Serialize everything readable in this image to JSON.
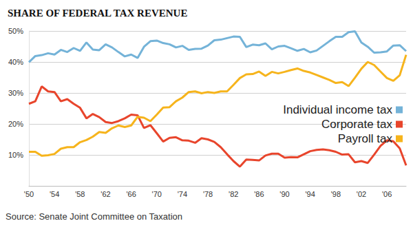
{
  "chart_data": {
    "type": "line",
    "title": "SHARE OF FEDERAL TAX REVENUE",
    "source": "Source: Senate Joint Committee on Taxation",
    "categories": [
      "'50",
      null,
      null,
      null,
      "'54",
      null,
      null,
      null,
      "'58",
      null,
      null,
      null,
      "'62",
      null,
      null,
      null,
      "'66",
      null,
      null,
      null,
      "'70",
      null,
      null,
      null,
      "'74",
      null,
      null,
      null,
      "'78",
      null,
      null,
      null,
      "'82",
      null,
      null,
      null,
      "'86",
      null,
      null,
      null,
      "'90",
      null,
      null,
      null,
      "'94",
      null,
      null,
      null,
      "'98",
      null,
      null,
      null,
      "'02",
      null,
      null,
      null,
      "'06",
      null,
      null,
      null
    ],
    "series": [
      {
        "name": "Individual income tax",
        "color": "#74b3d8",
        "values": [
          39.9,
          41.9,
          42.2,
          42.8,
          42.4,
          43.9,
          43.2,
          44.5,
          43.6,
          46.3,
          44.0,
          43.8,
          45.7,
          44.7,
          43.2,
          41.8,
          42.4,
          41.3,
          44.9,
          46.7,
          46.9,
          46.1,
          45.7,
          44.7,
          45.2,
          43.9,
          44.2,
          44.3,
          45.3,
          47.0,
          47.2,
          47.7,
          48.2,
          48.1,
          44.8,
          45.6,
          45.4,
          46.0,
          44.1,
          45.0,
          45.2,
          44.4,
          43.6,
          44.2,
          43.1,
          43.7,
          45.2,
          46.7,
          48.1,
          48.1,
          49.6,
          49.9,
          46.3,
          44.9,
          43.0,
          43.1,
          43.4,
          45.3,
          45.4,
          43.5
        ]
      },
      {
        "name": "Corporate tax",
        "color": "#e8452c",
        "values": [
          26.5,
          27.3,
          32.1,
          30.5,
          30.3,
          27.3,
          28.0,
          26.5,
          25.2,
          21.8,
          23.2,
          22.2,
          20.6,
          20.3,
          20.9,
          21.8,
          23.0,
          22.8,
          18.7,
          19.6,
          17.0,
          14.3,
          15.5,
          15.7,
          14.7,
          14.6,
          13.9,
          15.4,
          15.0,
          14.2,
          12.5,
          10.2,
          8.0,
          6.2,
          8.5,
          8.4,
          8.2,
          9.8,
          10.4,
          10.4,
          9.1,
          9.3,
          9.2,
          10.2,
          11.2,
          11.6,
          11.8,
          11.5,
          11.0,
          10.1,
          10.2,
          7.6,
          8.0,
          7.4,
          10.1,
          12.9,
          14.7,
          14.4,
          12.1,
          6.6
        ]
      },
      {
        "name": "Payroll tax",
        "color": "#f6b41c",
        "values": [
          11.0,
          11.0,
          9.7,
          9.9,
          10.3,
          12.0,
          12.5,
          12.5,
          14.1,
          14.8,
          15.9,
          17.4,
          17.1,
          18.6,
          19.5,
          19.0,
          19.5,
          22.3,
          22.0,
          20.9,
          23.0,
          25.3,
          25.4,
          27.3,
          28.5,
          30.3,
          30.5,
          29.9,
          30.3,
          30.0,
          30.5,
          30.5,
          32.6,
          34.8,
          36.0,
          36.1,
          36.9,
          35.5,
          36.8,
          36.3,
          36.8,
          37.4,
          37.9,
          37.1,
          36.6,
          35.8,
          35.0,
          34.2,
          33.2,
          33.5,
          32.2,
          34.9,
          37.8,
          40.0,
          39.0,
          36.9,
          34.8,
          33.9,
          35.7,
          42.3
        ]
      }
    ],
    "ylim": [
      0,
      50
    ],
    "yticks": [
      {
        "value": 10,
        "label": "10%"
      },
      {
        "value": 20,
        "label": "20%"
      },
      {
        "value": 30,
        "label": "30%"
      },
      {
        "value": 40,
        "label": "40%"
      },
      {
        "value": 50,
        "label": "50%"
      }
    ],
    "grid": true,
    "legend": "right"
  }
}
